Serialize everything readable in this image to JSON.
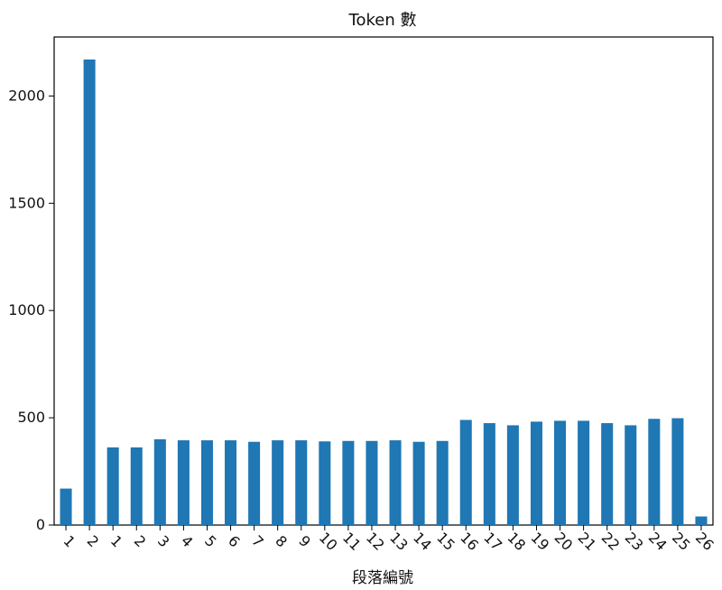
{
  "colors": {
    "bar": "#1f77b4",
    "axis": "#000000",
    "text": "#111111",
    "background": "#ffffff"
  },
  "chart_data": {
    "type": "bar",
    "title": "Token 數",
    "xlabel": "段落編號",
    "ylabel": "",
    "categories": [
      "1",
      "2",
      "1",
      "2",
      "3",
      "4",
      "5",
      "6",
      "7",
      "8",
      "9",
      "10",
      "11",
      "12",
      "13",
      "14",
      "15",
      "16",
      "17",
      "18",
      "19",
      "20",
      "21",
      "22",
      "23",
      "24",
      "25",
      "26"
    ],
    "values": [
      170,
      2170,
      362,
      362,
      400,
      395,
      395,
      395,
      388,
      395,
      395,
      390,
      392,
      392,
      395,
      388,
      392,
      490,
      475,
      465,
      482,
      486,
      486,
      475,
      465,
      495,
      498,
      40
    ],
    "ylim": [
      0,
      2275
    ],
    "yticks": [
      0,
      500,
      1000,
      1500,
      2000
    ],
    "grid": false,
    "legend": "none"
  }
}
